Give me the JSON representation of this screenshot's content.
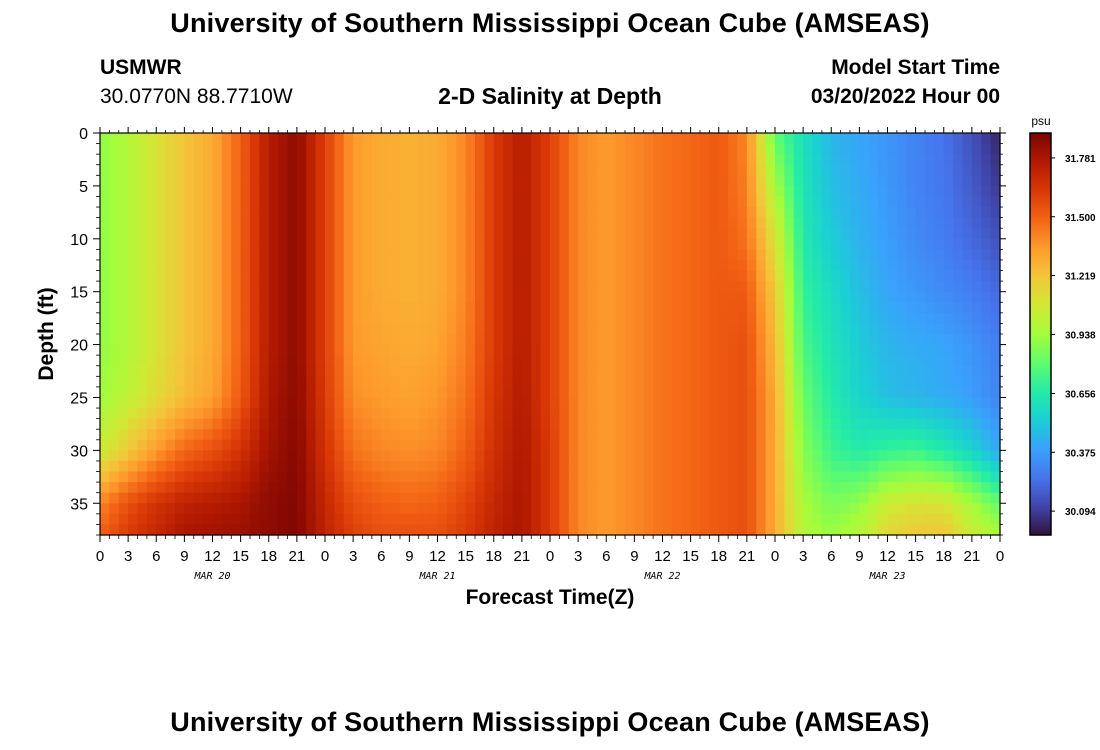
{
  "header": {
    "title": "University of Southern Mississippi Ocean Cube (AMSEAS)",
    "station_id": "USMWR",
    "coords": "30.0770N  88.7710W",
    "subtitle": "2-D Salinity at Depth",
    "start_label": "Model Start Time",
    "start_value": "03/20/2022 Hour 00"
  },
  "footer": {
    "title": "University of Southern Mississippi Ocean Cube (AMSEAS)"
  },
  "colors": {
    "scale": [
      "#30123b",
      "#4145ab",
      "#4675ed",
      "#39a2fc",
      "#1bcfd4",
      "#24eca6",
      "#61fc6c",
      "#a4fc3b",
      "#d1e834",
      "#f3c63a",
      "#fe9b2d",
      "#f36315",
      "#d93806",
      "#b11901",
      "#7a0402"
    ]
  },
  "chart_data": {
    "type": "heatmap",
    "title": "2-D Salinity at Depth",
    "xlabel": "Forecast Time(Z)",
    "ylabel": "Depth (ft)",
    "x_unit": "hours since 03/20/2022 00Z",
    "xlim": [
      0,
      96
    ],
    "ylim": [
      0,
      38
    ],
    "x_tick_hours": [
      0,
      3,
      6,
      9,
      12,
      15,
      18,
      21,
      24,
      27,
      30,
      33,
      36,
      39,
      42,
      45,
      48,
      51,
      54,
      57,
      60,
      63,
      66,
      69,
      72,
      75,
      78,
      81,
      84,
      87,
      90,
      93,
      96
    ],
    "x_tick_labels": [
      "0",
      "3",
      "6",
      "9",
      "12",
      "15",
      "18",
      "21",
      "0",
      "3",
      "6",
      "9",
      "12",
      "15",
      "18",
      "21",
      "0",
      "3",
      "6",
      "9",
      "12",
      "15",
      "18",
      "21",
      "0",
      "3",
      "6",
      "9",
      "12",
      "15",
      "18",
      "21",
      "0"
    ],
    "y_ticks": [
      0,
      5,
      10,
      15,
      20,
      25,
      30,
      35
    ],
    "y_tick_labels": [
      "0",
      "5",
      "10",
      "15",
      "20",
      "25",
      "30",
      "35"
    ],
    "date_labels": [
      {
        "hour": 12,
        "label": "MAR 20"
      },
      {
        "hour": 36,
        "label": "MAR 21"
      },
      {
        "hour": 60,
        "label": "MAR 22"
      },
      {
        "hour": 84,
        "label": "MAR 23"
      }
    ],
    "colorbar": {
      "unit": "psu",
      "min": 29.98,
      "max": 31.9,
      "tick_values": [
        31.781,
        31.5,
        31.219,
        30.938,
        30.656,
        30.375,
        30.094
      ],
      "tick_labels": [
        "31.781",
        "31.500",
        "31.219",
        "30.938",
        "30.656",
        "30.375",
        "30.094"
      ]
    },
    "depth_levels_ft": [
      0,
      5,
      10,
      15,
      20,
      25,
      30,
      35,
      38
    ],
    "time_hours": [
      0,
      3,
      6,
      9,
      12,
      15,
      18,
      21,
      24,
      27,
      30,
      33,
      36,
      39,
      42,
      45,
      48,
      51,
      54,
      57,
      60,
      63,
      66,
      69,
      72,
      75,
      78,
      81,
      84,
      87,
      90,
      93,
      96
    ],
    "salinity_psu": [
      [
        30.9,
        30.9,
        30.9,
        30.9,
        30.9,
        30.93,
        31.05,
        31.4,
        31.5
      ],
      [
        30.98,
        30.98,
        30.98,
        30.98,
        30.98,
        31.02,
        31.2,
        31.55,
        31.62
      ],
      [
        31.1,
        31.1,
        31.1,
        31.1,
        31.1,
        31.13,
        31.35,
        31.65,
        31.7
      ],
      [
        31.22,
        31.22,
        31.22,
        31.22,
        31.22,
        31.25,
        31.48,
        31.72,
        31.78
      ],
      [
        31.3,
        31.3,
        31.3,
        31.3,
        31.3,
        31.33,
        31.55,
        31.75,
        31.8
      ],
      [
        31.5,
        31.5,
        31.5,
        31.5,
        31.5,
        31.52,
        31.65,
        31.78,
        31.82
      ],
      [
        31.75,
        31.75,
        31.75,
        31.75,
        31.75,
        31.77,
        31.8,
        31.85,
        31.85
      ],
      [
        31.85,
        31.85,
        31.85,
        31.85,
        31.85,
        31.86,
        31.87,
        31.88,
        31.88
      ],
      [
        31.6,
        31.6,
        31.6,
        31.6,
        31.6,
        31.62,
        31.65,
        31.7,
        31.72
      ],
      [
        31.35,
        31.35,
        31.35,
        31.35,
        31.35,
        31.38,
        31.45,
        31.55,
        31.6
      ],
      [
        31.3,
        31.3,
        31.3,
        31.3,
        31.32,
        31.35,
        31.4,
        31.5,
        31.55
      ],
      [
        31.28,
        31.28,
        31.28,
        31.28,
        31.3,
        31.33,
        31.38,
        31.48,
        31.55
      ],
      [
        31.3,
        31.3,
        31.3,
        31.3,
        31.32,
        31.36,
        31.4,
        31.5,
        31.55
      ],
      [
        31.4,
        31.4,
        31.4,
        31.4,
        31.42,
        31.45,
        31.5,
        31.58,
        31.62
      ],
      [
        31.62,
        31.62,
        31.62,
        31.62,
        31.62,
        31.64,
        31.66,
        31.7,
        31.72
      ],
      [
        31.75,
        31.75,
        31.75,
        31.75,
        31.75,
        31.76,
        31.77,
        31.78,
        31.78
      ],
      [
        31.6,
        31.6,
        31.6,
        31.6,
        31.6,
        31.6,
        31.62,
        31.62,
        31.62
      ],
      [
        31.4,
        31.4,
        31.4,
        31.4,
        31.4,
        31.4,
        31.4,
        31.4,
        31.4
      ],
      [
        31.35,
        31.35,
        31.35,
        31.35,
        31.35,
        31.35,
        31.35,
        31.35,
        31.35
      ],
      [
        31.4,
        31.4,
        31.4,
        31.4,
        31.4,
        31.4,
        31.4,
        31.4,
        31.4
      ],
      [
        31.45,
        31.45,
        31.45,
        31.45,
        31.45,
        31.45,
        31.45,
        31.45,
        31.45
      ],
      [
        31.48,
        31.48,
        31.48,
        31.48,
        31.48,
        31.48,
        31.48,
        31.48,
        31.48
      ],
      [
        31.52,
        31.52,
        31.52,
        31.52,
        31.52,
        31.52,
        31.52,
        31.52,
        31.52
      ],
      [
        31.4,
        31.42,
        31.45,
        31.52,
        31.55,
        31.55,
        31.55,
        31.55,
        31.55
      ],
      [
        30.8,
        30.95,
        31.1,
        31.2,
        31.25,
        31.3,
        31.3,
        31.3,
        31.3
      ],
      [
        30.6,
        30.62,
        30.65,
        30.7,
        30.75,
        30.82,
        30.88,
        30.95,
        30.98
      ],
      [
        30.45,
        30.48,
        30.52,
        30.58,
        30.62,
        30.66,
        30.72,
        30.85,
        30.92
      ],
      [
        30.4,
        30.42,
        30.44,
        30.48,
        30.52,
        30.55,
        30.66,
        30.9,
        31.0
      ],
      [
        30.35,
        30.36,
        30.38,
        30.4,
        30.45,
        30.48,
        30.7,
        31.05,
        31.15
      ],
      [
        30.3,
        30.3,
        30.32,
        30.36,
        30.42,
        30.45,
        30.72,
        31.1,
        31.2
      ],
      [
        30.25,
        30.26,
        30.28,
        30.32,
        30.4,
        30.42,
        30.65,
        31.1,
        31.22
      ],
      [
        30.15,
        30.18,
        30.22,
        30.28,
        30.35,
        30.38,
        30.55,
        30.95,
        31.05
      ],
      [
        30.03,
        30.08,
        30.15,
        30.22,
        30.28,
        30.3,
        30.4,
        30.8,
        30.95
      ]
    ]
  }
}
